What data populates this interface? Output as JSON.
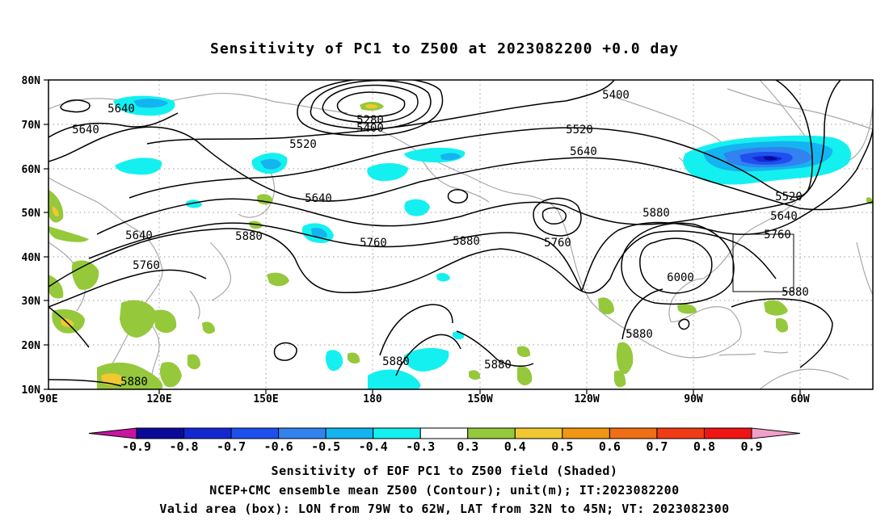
{
  "title": "Sensitivity of PC1 to Z500 at 2023082200 +0.0 day",
  "lat_labels": [
    "80N",
    "70N",
    "60N",
    "50N",
    "40N",
    "30N",
    "20N",
    "10N"
  ],
  "lon_labels": [
    "90E",
    "120E",
    "150E",
    "180",
    "150W",
    "120W",
    "90W",
    "60W"
  ],
  "contour_labels": [
    {
      "text": "5640",
      "id": "c-5640-a"
    },
    {
      "text": "5640",
      "id": "c-5640-b"
    },
    {
      "text": "5280",
      "id": "c-5280"
    },
    {
      "text": "5400",
      "id": "c-5400-a"
    },
    {
      "text": "5400",
      "id": "c-5400-b"
    },
    {
      "text": "5520",
      "id": "c-5520-a"
    },
    {
      "text": "5520",
      "id": "c-5520-b"
    },
    {
      "text": "5640",
      "id": "c-5640-c"
    },
    {
      "text": "5520",
      "id": "c-5520-c"
    },
    {
      "text": "5640",
      "id": "c-5640-d"
    },
    {
      "text": "5640",
      "id": "c-5640-e"
    },
    {
      "text": "5880",
      "id": "c-5880-a"
    },
    {
      "text": "5760",
      "id": "c-5760-a"
    },
    {
      "text": "5880",
      "id": "c-5880-b"
    },
    {
      "text": "5760",
      "id": "c-5760-b"
    },
    {
      "text": "5880",
      "id": "c-5880-c"
    },
    {
      "text": "5760",
      "id": "c-5760-c"
    },
    {
      "text": "5640",
      "id": "c-5640-f"
    },
    {
      "text": "5760",
      "id": "c-5760-d"
    },
    {
      "text": "6000",
      "id": "c-6000"
    },
    {
      "text": "5880",
      "id": "c-5880-d"
    },
    {
      "text": "5880",
      "id": "c-5880-e"
    },
    {
      "text": "5880",
      "id": "c-5880-f"
    },
    {
      "text": "5880",
      "id": "c-5880-g"
    },
    {
      "text": "5880",
      "id": "c-5880-h"
    }
  ],
  "colorbar": {
    "labels": [
      "-0.9",
      "-0.8",
      "-0.7",
      "-0.6",
      "-0.5",
      "-0.4",
      "-0.3",
      "0.3",
      "0.4",
      "0.5",
      "0.6",
      "0.7",
      "0.8",
      "0.9"
    ],
    "colors": [
      "#0a0a9a",
      "#1428d2",
      "#1e50f0",
      "#3282f0",
      "#14b4f0",
      "#14f0f0",
      "#ffffff",
      "#96c83c",
      "#f0c832",
      "#f09614",
      "#f06e14",
      "#f03c14",
      "#f01414"
    ],
    "left_end_color": "#c814a0",
    "right_end_color": "#f0a0c8"
  },
  "captions": [
    "Sensitivity of EOF PC1 to Z500 field (Shaded)",
    "NCEP+CMC ensemble mean Z500 (Contour); unit(m); IT:2023082200",
    "Valid area (box): LON from 79W to 62W, LAT from 32N to 45N; VT: 2023082300"
  ]
}
